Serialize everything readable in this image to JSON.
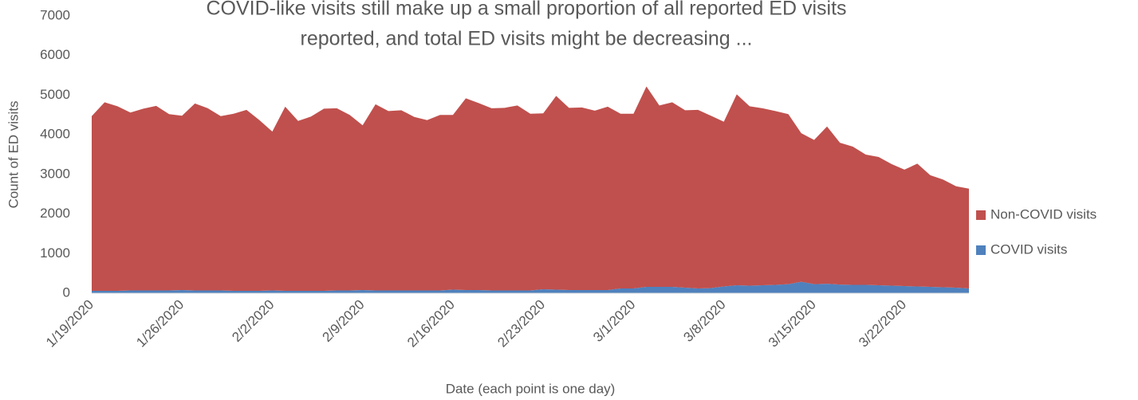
{
  "chart_data": {
    "type": "stacked_area",
    "title": [
      "COVID-like visits still make up a small proportion of all reported ED visits",
      "reported, and total ED visits might be decreasing ..."
    ],
    "x_label": "Date (each point is one day)",
    "y_label": "Count of ED visits",
    "categories": [
      "1/19/2020",
      null,
      null,
      null,
      null,
      null,
      null,
      "1/26/2020",
      null,
      null,
      null,
      null,
      null,
      null,
      "2/2/2020",
      null,
      null,
      null,
      null,
      null,
      null,
      "2/9/2020",
      null,
      null,
      null,
      null,
      null,
      null,
      "2/16/2020",
      null,
      null,
      null,
      null,
      null,
      null,
      "2/23/2020",
      null,
      null,
      null,
      null,
      null,
      null,
      "3/1/2020",
      null,
      null,
      null,
      null,
      null,
      null,
      "3/8/2020",
      null,
      null,
      null,
      null,
      null,
      null,
      "3/15/2020",
      null,
      null,
      null,
      null,
      null,
      null,
      "3/22/2020",
      null,
      null,
      null,
      null,
      null
    ],
    "series": [
      {
        "name": "COVID visits",
        "color": "#4f81bd",
        "values": [
          60,
          60,
          60,
          70,
          70,
          70,
          70,
          80,
          70,
          70,
          70,
          60,
          60,
          60,
          70,
          60,
          60,
          60,
          60,
          70,
          70,
          80,
          70,
          70,
          70,
          70,
          70,
          70,
          90,
          80,
          80,
          70,
          70,
          70,
          70,
          100,
          90,
          80,
          80,
          80,
          80,
          120,
          120,
          160,
          160,
          160,
          140,
          120,
          130,
          170,
          200,
          190,
          200,
          210,
          230,
          290,
          230,
          240,
          220,
          210,
          210,
          200,
          190,
          180,
          170,
          160,
          150,
          140,
          120
        ]
      },
      {
        "name": "Non-COVID visits",
        "color": "#c0504d",
        "values": [
          4410,
          4760,
          4660,
          4490,
          4590,
          4660,
          4450,
          4400,
          4720,
          4600,
          4400,
          4470,
          4570,
          4310,
          4010,
          4650,
          4290,
          4400,
          4600,
          4600,
          4430,
          4160,
          4700,
          4530,
          4550,
          4380,
          4300,
          4430,
          4410,
          4840,
          4720,
          4600,
          4610,
          4670,
          4460,
          4440,
          4890,
          4600,
          4610,
          4530,
          4630,
          4410,
          4410,
          5060,
          4580,
          4660,
          4480,
          4510,
          4350,
          4160,
          4820,
          4530,
          4470,
          4390,
          4290,
          3750,
          3640,
          3970,
          3580,
          3490,
          3290,
          3240,
          3070,
          2940,
          3100,
          2820,
          2720,
          2560,
          2520
        ]
      }
    ],
    "ylim": [
      0,
      7000
    ],
    "yticks": [
      0,
      1000,
      2000,
      3000,
      4000,
      5000,
      6000,
      7000
    ],
    "legend": "right"
  }
}
